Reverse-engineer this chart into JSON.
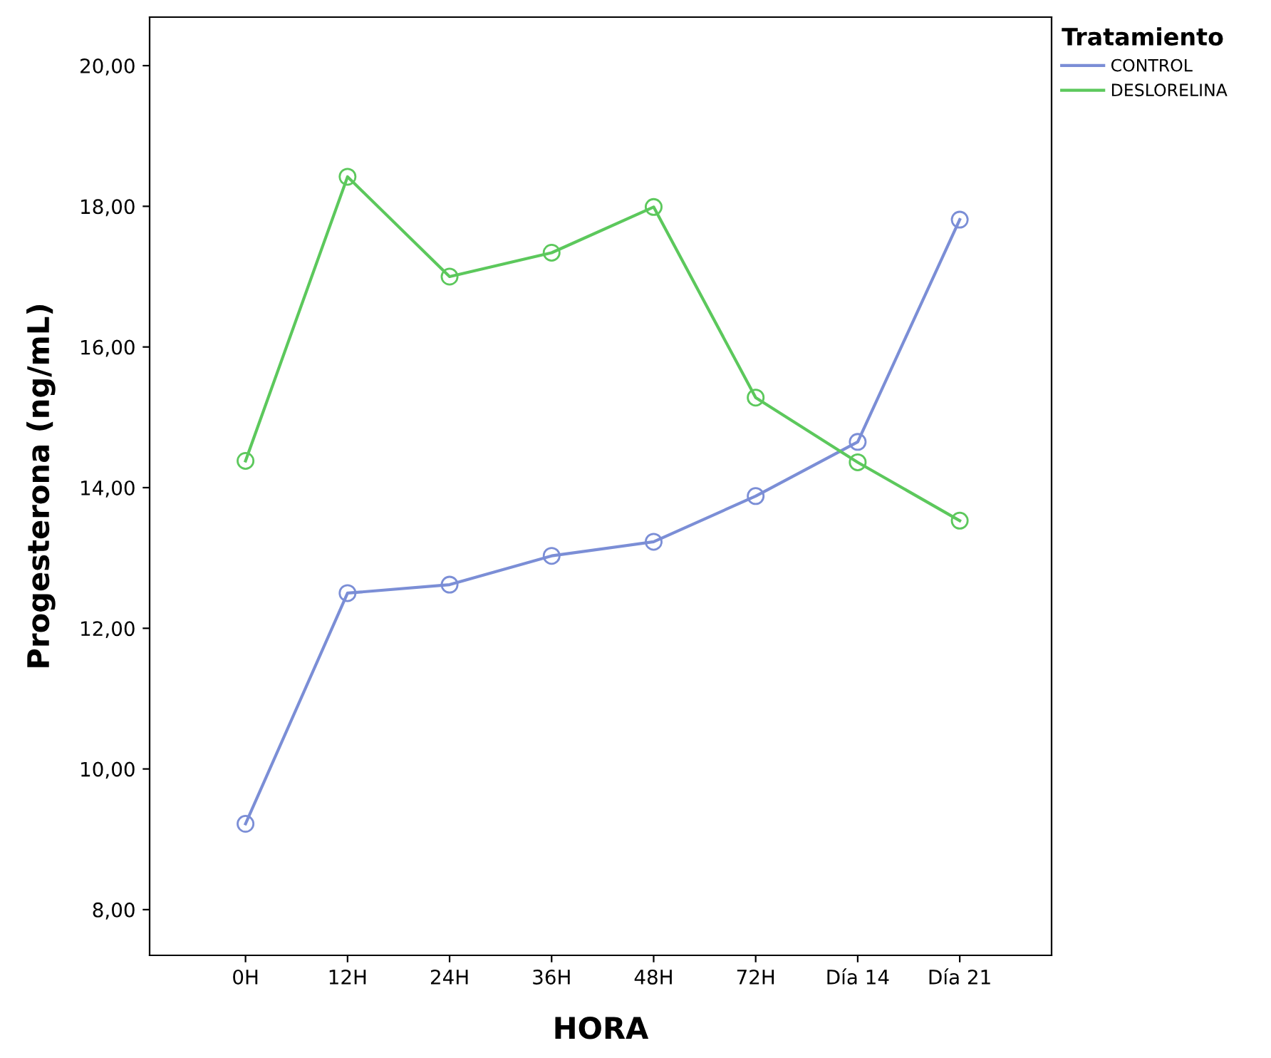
{
  "chart_data": {
    "type": "line",
    "xlabel": "HORA",
    "ylabel": "Progesterona (ng/mL)",
    "legend_title": "Tratamiento",
    "legend": "right",
    "marker": "circle",
    "line_style": "solid",
    "grid": false,
    "categories": [
      "0H",
      "12H",
      "24H",
      "36H",
      "48H",
      "72H",
      "Día 14",
      "Día 21"
    ],
    "ylim": [
      7.35,
      20.69
    ],
    "yticks": [
      {
        "value": 8,
        "label": "8,00"
      },
      {
        "value": 10,
        "label": "10,00"
      },
      {
        "value": 12,
        "label": "12,00"
      },
      {
        "value": 14,
        "label": "14,00"
      },
      {
        "value": 16,
        "label": "16,00"
      },
      {
        "value": 18,
        "label": "18,00"
      },
      {
        "value": 20,
        "label": "20,00"
      }
    ],
    "series": [
      {
        "name": "CONTROL",
        "color": "#7b8ed6",
        "values": [
          9.22,
          12.5,
          12.62,
          13.03,
          13.23,
          13.88,
          14.65,
          17.81
        ]
      },
      {
        "name": "DESLORELINA",
        "color": "#5cc85c",
        "values": [
          14.38,
          18.42,
          17.0,
          17.34,
          17.99,
          15.28,
          14.36,
          13.53
        ]
      }
    ]
  }
}
